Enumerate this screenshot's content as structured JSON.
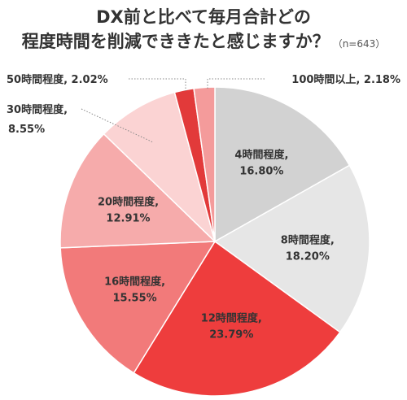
{
  "title": {
    "line1": "DX前と比べて毎月合計どの",
    "line2": "程度時間を削減でききたと感じますか？",
    "note": "（n=643）"
  },
  "chart_data": {
    "type": "pie",
    "unit": "%",
    "slices": [
      {
        "label": "4時間程度",
        "value": 16.8,
        "value_text": "16.80%",
        "color": "#d2d2d2"
      },
      {
        "label": "8時間程度",
        "value": 18.2,
        "value_text": "18.20%",
        "color": "#e6e6e6"
      },
      {
        "label": "12時間程度",
        "value": 23.79,
        "value_text": "23.79%",
        "color": "#ee3d3d"
      },
      {
        "label": "16時間程度",
        "value": 15.55,
        "value_text": "15.55%",
        "color": "#f27a7a"
      },
      {
        "label": "20時間程度",
        "value": 12.91,
        "value_text": "12.91%",
        "color": "#f6abab"
      },
      {
        "label": "30時間程度",
        "value": 8.55,
        "value_text": "8.55%",
        "color": "#fbd3d3"
      },
      {
        "label": "50時間程度",
        "value": 2.02,
        "value_text": "2.02%",
        "color": "#e23a3a"
      },
      {
        "label": "100時間以上",
        "value": 2.18,
        "value_text": "2.18%",
        "color": "#f49b9b"
      }
    ]
  }
}
